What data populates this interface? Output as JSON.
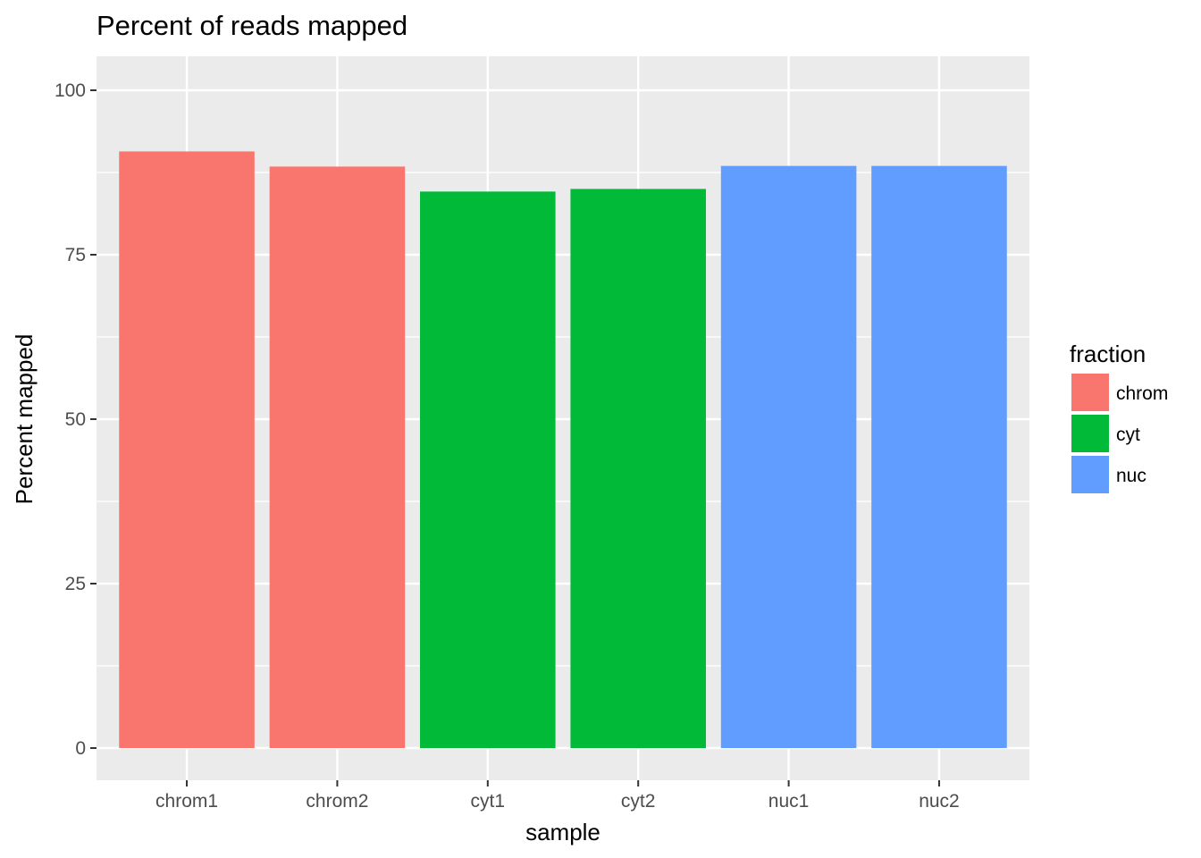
{
  "chart_data": {
    "type": "bar",
    "title": "Percent of reads mapped",
    "xlabel": "sample",
    "ylabel": "Percent mapped",
    "categories": [
      "chrom1",
      "chrom2",
      "cyt1",
      "cyt2",
      "nuc1",
      "nuc2"
    ],
    "values": [
      90.7,
      88.4,
      84.6,
      85.0,
      88.5,
      88.5
    ],
    "fill_group": [
      "chrom",
      "chrom",
      "cyt",
      "cyt",
      "nuc",
      "nuc"
    ],
    "ylim": [
      0,
      100
    ],
    "yticks": [
      0,
      25,
      50,
      75,
      100
    ],
    "grid": true,
    "legend": {
      "title": "fraction",
      "placement": "right",
      "entries": [
        {
          "label": "chrom",
          "color": "#F8766D"
        },
        {
          "label": "cyt",
          "color": "#00BA38"
        },
        {
          "label": "nuc",
          "color": "#619CFF"
        }
      ]
    },
    "colors": {
      "panel_background": "#EBEBEB",
      "grid": "#FFFFFF",
      "chrom": "#F8766D",
      "cyt": "#00BA38",
      "nuc": "#619CFF"
    }
  }
}
